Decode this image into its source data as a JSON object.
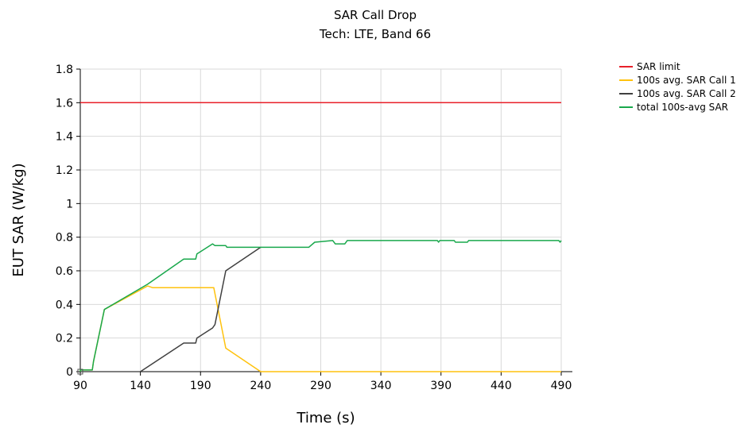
{
  "chart_data": {
    "type": "line",
    "title": "SAR Call Drop",
    "subtitle": "Tech: LTE, Band 66",
    "xlabel": "Time (s)",
    "ylabel": "EUT SAR (W/kg)",
    "xlim": [
      90,
      490
    ],
    "ylim": [
      0,
      1.8
    ],
    "x_ticks": [
      90,
      140,
      190,
      240,
      290,
      340,
      390,
      440,
      490
    ],
    "x_tick_labels": [
      "90",
      "140",
      "190",
      "240",
      "290",
      "340",
      "390",
      "440",
      "490"
    ],
    "y_ticks": [
      0,
      0.2,
      0.4,
      0.6,
      0.8,
      1.0,
      1.2,
      1.4,
      1.6,
      1.8
    ],
    "y_tick_labels": [
      "0",
      "0.2",
      "0.4",
      "0.6",
      "0.8",
      "1",
      "1.2",
      "1.4",
      "1.6",
      "1.8"
    ],
    "grid": true,
    "legend_position": "top-right",
    "series": [
      {
        "name": "SAR limit",
        "color": "#e8202a",
        "points": [
          [
            90,
            1.6
          ],
          [
            490,
            1.6
          ]
        ]
      },
      {
        "name": "100s avg. SAR Call 1",
        "color": "#ffc20e",
        "points": [
          [
            90,
            0
          ],
          [
            90,
            0.01
          ],
          [
            100,
            0.01
          ],
          [
            101,
            0.06
          ],
          [
            110,
            0.37
          ],
          [
            146,
            0.51
          ],
          [
            150,
            0.5
          ],
          [
            201,
            0.5
          ],
          [
            211,
            0.14
          ],
          [
            240,
            0.0
          ],
          [
            490,
            0.0
          ]
        ]
      },
      {
        "name": "100s avg. SAR Call 2",
        "color": "#404040",
        "points": [
          [
            140,
            0.0
          ],
          [
            176,
            0.17
          ],
          [
            186,
            0.17
          ],
          [
            187,
            0.2
          ],
          [
            200,
            0.26
          ],
          [
            202,
            0.28
          ],
          [
            211,
            0.6
          ],
          [
            240,
            0.74
          ]
        ]
      },
      {
        "name": "total 100s-avg SAR",
        "color": "#19a84c",
        "points": [
          [
            90,
            0
          ],
          [
            90,
            0.01
          ],
          [
            100,
            0.01
          ],
          [
            101,
            0.06
          ],
          [
            110,
            0.37
          ],
          [
            146,
            0.52
          ],
          [
            176,
            0.67
          ],
          [
            186,
            0.67
          ],
          [
            187,
            0.7
          ],
          [
            200,
            0.76
          ],
          [
            202,
            0.75
          ],
          [
            211,
            0.75
          ],
          [
            212,
            0.74
          ],
          [
            240,
            0.74
          ],
          [
            280,
            0.74
          ],
          [
            285,
            0.77
          ],
          [
            300,
            0.78
          ],
          [
            302,
            0.76
          ],
          [
            310,
            0.76
          ],
          [
            312,
            0.78
          ],
          [
            387,
            0.78
          ],
          [
            388,
            0.77
          ],
          [
            389,
            0.78
          ],
          [
            401,
            0.78
          ],
          [
            402,
            0.77
          ],
          [
            412,
            0.77
          ],
          [
            413,
            0.78
          ],
          [
            488,
            0.78
          ],
          [
            489,
            0.77
          ],
          [
            490,
            0.78
          ]
        ]
      }
    ]
  }
}
